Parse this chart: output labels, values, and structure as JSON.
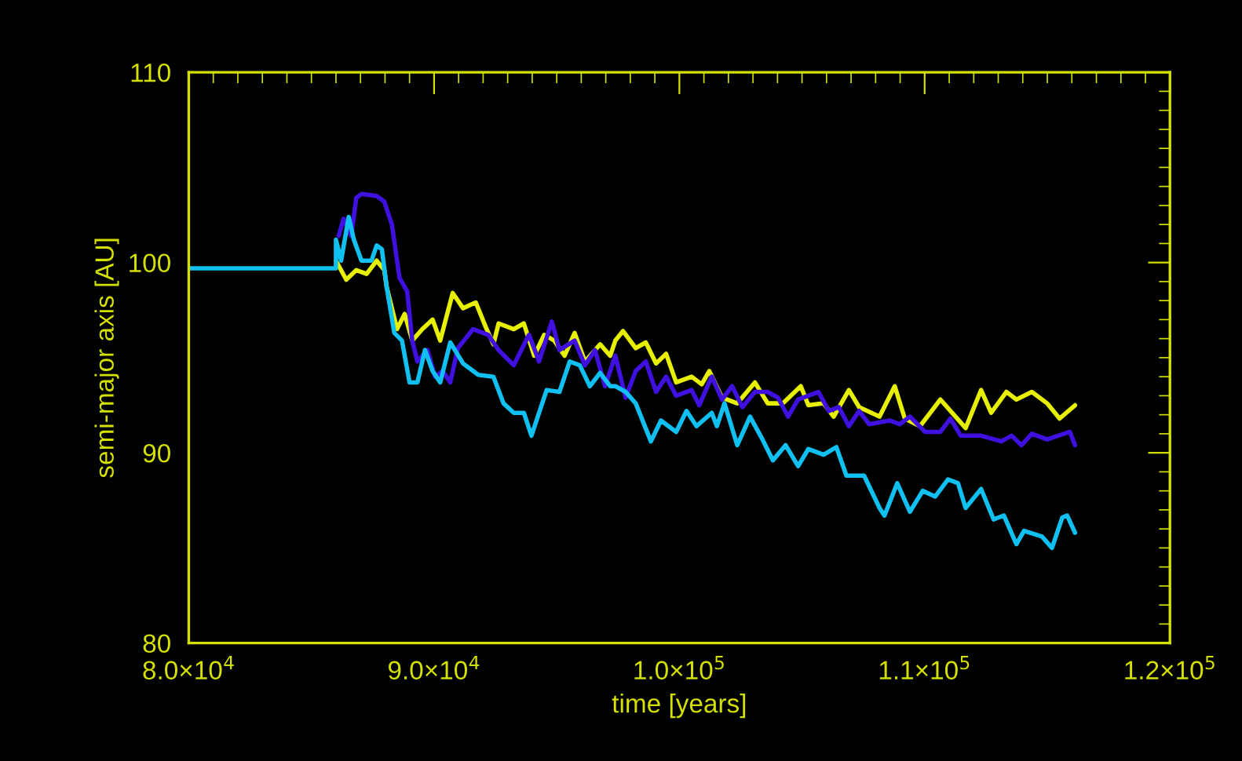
{
  "chart_data": {
    "type": "line",
    "xlabel": "time [years]",
    "ylabel": "semi-major axis [AU]",
    "xlim": [
      80000,
      120000
    ],
    "ylim": [
      80,
      110
    ],
    "xticks": [
      {
        "value": 80000,
        "label": "8.0×10$^{4}$"
      },
      {
        "value": 90000,
        "label": "9.0×10$^{4}$"
      },
      {
        "value": 100000,
        "label": "1.0×10$^{5}$"
      },
      {
        "value": 110000,
        "label": "1.1×10$^{5}$"
      },
      {
        "value": 120000,
        "label": "1.2×10$^{5}$"
      }
    ],
    "yticks": [
      80,
      90,
      100,
      110
    ],
    "grid": false,
    "legend": false,
    "marker": "none",
    "line_style": "solid",
    "series": [
      {
        "color": "#e6f000",
        "x": [
          86000,
          86420,
          86830,
          87250,
          87660,
          87970,
          88070,
          88490,
          88800,
          89110,
          89520,
          89940,
          90250,
          90760,
          91180,
          91700,
          92110,
          92420,
          92630,
          93250,
          93660,
          94080,
          94490,
          94900,
          95320,
          95730,
          96150,
          96770,
          97180,
          97390,
          97700,
          98220,
          98630,
          99050,
          99460,
          99870,
          100500,
          100910,
          101220,
          101740,
          102360,
          103080,
          103600,
          104220,
          104950,
          105260,
          105880,
          106290,
          106910,
          107330,
          108160,
          108780,
          109190,
          109810,
          110640,
          111260,
          111670,
          112300,
          112710,
          113330,
          113740,
          114370,
          114990,
          115500,
          116130
        ],
        "values": [
          100.1,
          99.1,
          99.6,
          99.4,
          100.1,
          99.6,
          98.7,
          96.5,
          97.3,
          95.9,
          96.5,
          97.0,
          95.9,
          98.4,
          97.6,
          97.9,
          96.6,
          95.7,
          96.8,
          96.5,
          96.8,
          95.1,
          96.2,
          95.9,
          95.1,
          96.3,
          94.8,
          95.7,
          95.1,
          95.9,
          96.4,
          95.5,
          95.8,
          94.7,
          95.2,
          93.7,
          94.0,
          93.6,
          94.3,
          92.9,
          92.6,
          93.7,
          92.6,
          92.6,
          93.5,
          92.5,
          92.6,
          91.9,
          93.3,
          92.4,
          91.9,
          93.5,
          91.8,
          91.4,
          92.8,
          91.9,
          91.3,
          93.3,
          92.1,
          93.2,
          92.8,
          93.2,
          92.6,
          91.8,
          92.5
        ]
      },
      {
        "color": "#4010e0",
        "x": [
          86110,
          86310,
          86620,
          86830,
          87040,
          87660,
          87970,
          88280,
          88590,
          88900,
          89110,
          89320,
          89730,
          90040,
          90350,
          90660,
          90970,
          91590,
          92210,
          92630,
          93250,
          93870,
          94280,
          94800,
          95110,
          95730,
          96150,
          96560,
          96970,
          97390,
          97810,
          98220,
          98630,
          99050,
          99460,
          99870,
          100500,
          100810,
          101320,
          101740,
          102150,
          102570,
          103080,
          103600,
          104020,
          104430,
          104840,
          105670,
          106090,
          106500,
          106910,
          107330,
          107740,
          108570,
          108980,
          109400,
          110020,
          110640,
          111050,
          111470,
          112300,
          113120,
          113540,
          113950,
          114370,
          114990,
          115920,
          116130
        ],
        "values": [
          101.4,
          102.3,
          101.4,
          103.4,
          103.6,
          103.5,
          103.2,
          102.0,
          99.2,
          98.5,
          95.9,
          94.8,
          95.4,
          94.0,
          94.3,
          93.7,
          95.5,
          96.5,
          96.2,
          95.4,
          94.6,
          96.2,
          94.8,
          96.9,
          95.4,
          95.9,
          94.6,
          95.4,
          93.5,
          95.1,
          92.9,
          94.3,
          94.8,
          93.2,
          94.0,
          93.0,
          93.3,
          92.5,
          94.0,
          92.8,
          93.5,
          92.4,
          93.2,
          93.2,
          92.9,
          91.9,
          92.8,
          93.2,
          92.2,
          92.4,
          91.4,
          92.2,
          91.5,
          91.7,
          91.5,
          91.9,
          91.1,
          91.1,
          91.8,
          90.9,
          90.9,
          90.6,
          90.9,
          90.4,
          91.0,
          90.7,
          91.1,
          90.4
        ]
      },
      {
        "color": "#10c0f0",
        "x": [
          80000,
          86000,
          86000,
          86210,
          86520,
          86730,
          87040,
          87450,
          87660,
          87870,
          88070,
          88380,
          88690,
          89000,
          89320,
          89630,
          89940,
          90250,
          90660,
          91180,
          91800,
          92420,
          92830,
          93250,
          93660,
          93970,
          94280,
          94590,
          95110,
          95530,
          95940,
          96350,
          96770,
          97180,
          97390,
          97810,
          98220,
          98840,
          99250,
          99870,
          100290,
          100700,
          101320,
          101530,
          101840,
          102360,
          102880,
          103390,
          103810,
          104330,
          104840,
          105260,
          105880,
          106400,
          106810,
          107530,
          108160,
          108360,
          108880,
          109400,
          109920,
          110430,
          110950,
          111360,
          111670,
          112300,
          112810,
          113230,
          113740,
          114050,
          114780,
          115190,
          115610,
          115810,
          116130
        ],
        "values": [
          99.7,
          99.7,
          101.2,
          100.1,
          102.4,
          101.2,
          100.1,
          100.1,
          100.9,
          100.7,
          98.7,
          96.3,
          95.9,
          93.7,
          93.7,
          95.4,
          94.3,
          93.7,
          95.8,
          94.7,
          94.1,
          94.0,
          92.6,
          92.1,
          92.1,
          90.9,
          92.1,
          93.3,
          93.2,
          94.8,
          94.6,
          93.5,
          94.2,
          93.5,
          93.5,
          93.2,
          92.6,
          90.6,
          91.7,
          91.1,
          92.2,
          91.4,
          92.1,
          91.4,
          92.6,
          90.4,
          91.9,
          90.7,
          89.6,
          90.4,
          89.3,
          90.2,
          89.9,
          90.3,
          88.8,
          88.8,
          87.1,
          86.7,
          88.4,
          86.9,
          88.0,
          87.7,
          88.6,
          88.4,
          87.1,
          88.1,
          86.5,
          86.7,
          85.2,
          85.9,
          85.6,
          85.0,
          86.6,
          86.7,
          85.8
        ]
      }
    ]
  }
}
